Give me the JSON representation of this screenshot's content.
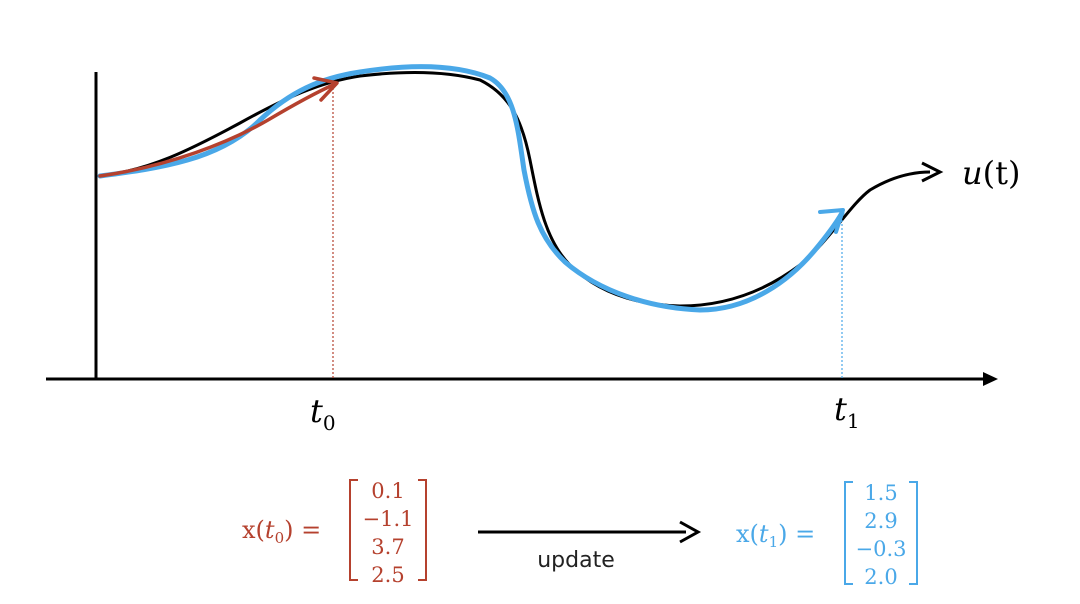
{
  "colors": {
    "axis": "#000000",
    "true_curve": "#000000",
    "fitted_curve": "#4aa8e8",
    "t0_color": "#b5412e",
    "t1_color": "#4aa8e8"
  },
  "curve_label": {
    "base": "u",
    "arg": "(t)"
  },
  "axis_ticks": {
    "t0": {
      "base": "t",
      "sub": "0"
    },
    "t1": {
      "base": "t",
      "sub": "1"
    }
  },
  "state_t0": {
    "lhs_open": "x(",
    "lhs_t": "t",
    "lhs_sub": "0",
    "lhs_close": ") =",
    "values": [
      "0.1",
      "−1.1",
      "3.7",
      "2.5"
    ]
  },
  "state_t1": {
    "lhs_open": "x(",
    "lhs_t": "t",
    "lhs_sub": "1",
    "lhs_close": ") =",
    "values": [
      "1.5",
      "2.9",
      "−0.3",
      "2.0"
    ]
  },
  "transition": {
    "label": "update"
  }
}
